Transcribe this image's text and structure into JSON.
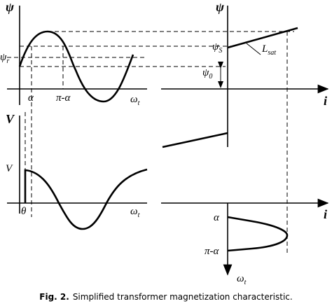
{
  "top_left": {
    "y_axis": {
      "main": "ψ",
      "sub": ""
    },
    "residual": {
      "main": "ψ",
      "sub": "r"
    },
    "alpha": "α",
    "pi_minus_alpha": "π-α",
    "x_axis": {
      "main": "ω",
      "sub": "t"
    }
  },
  "top_right": {
    "y_axis": "ψ",
    "saturation": {
      "main": "ψ",
      "sub": "S"
    },
    "slope": {
      "main": "L",
      "sub": "sat"
    },
    "offset": {
      "main": "ψ",
      "sub": "0"
    },
    "x_axis": "i"
  },
  "bottom_left": {
    "y_axis": "V",
    "amplitude": "V",
    "theta": "θ",
    "x_axis": {
      "main": "ω",
      "sub": "t"
    }
  },
  "bottom_right": {
    "x_axis": "i",
    "alpha": "α",
    "pi_minus_alpha": "π-α",
    "y_axis": {
      "main": "ω",
      "sub": "t"
    }
  },
  "caption": {
    "label": "Fig. 2.",
    "text": "Simplified transformer magnetization characteristic."
  }
}
